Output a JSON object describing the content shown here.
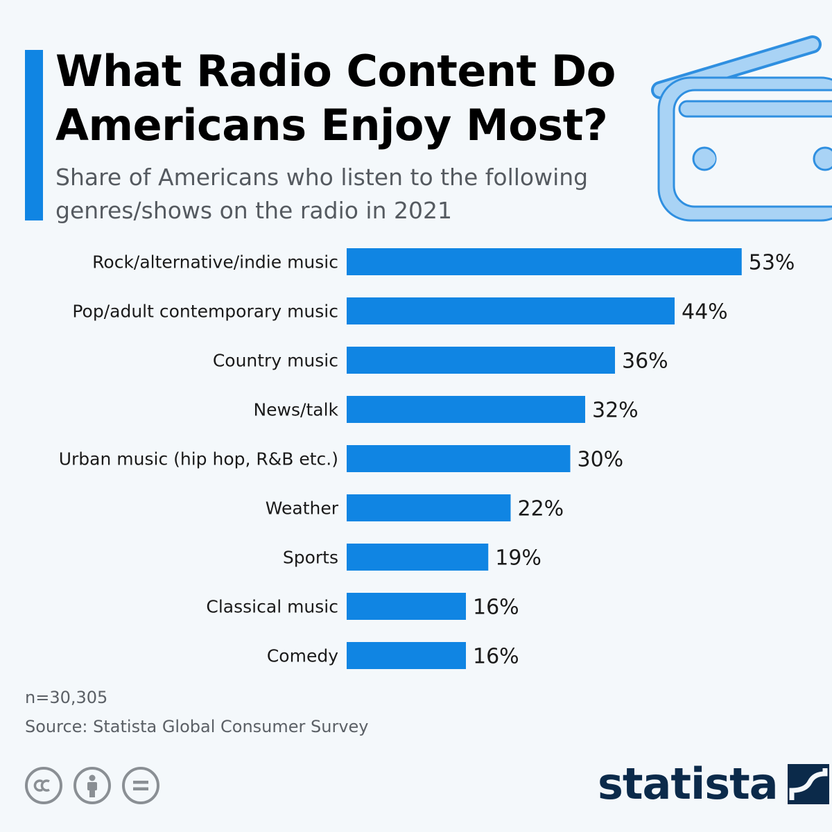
{
  "header": {
    "title_line1": "What Radio Content Do",
    "title_line2": "Americans Enjoy Most?",
    "subtitle_line1": "Share of Americans who listen to the following",
    "subtitle_line2": "genres/shows on the radio in 2021"
  },
  "colors": {
    "accent": "#1085e3",
    "bar": "#1085e3",
    "background": "#f4f8fb",
    "illustration_fill": "#a9d3f5",
    "illustration_stroke": "#2f8fe0",
    "brand": "#0b2a4a"
  },
  "chart_data": {
    "type": "bar",
    "orientation": "horizontal",
    "categories": [
      "Rock/alternative/indie music",
      "Pop/adult contemporary music",
      "Country music",
      "News/talk",
      "Urban music (hip hop, R&B etc.)",
      "Weather",
      "Sports",
      "Classical music",
      "Comedy"
    ],
    "values": [
      53,
      44,
      36,
      32,
      30,
      22,
      19,
      16,
      16
    ],
    "value_labels": [
      "53%",
      "44%",
      "36%",
      "32%",
      "30%",
      "22%",
      "19%",
      "16%",
      "16%"
    ],
    "unit": "%",
    "xlim": [
      0,
      60
    ],
    "grid": false,
    "legend": "none"
  },
  "footer": {
    "sample": "n=30,305",
    "source": "Source: Statista Global Consumer Survey",
    "brand": "statista",
    "license_icons": [
      "cc-icon",
      "attribution-icon",
      "no-derivatives-icon"
    ]
  }
}
